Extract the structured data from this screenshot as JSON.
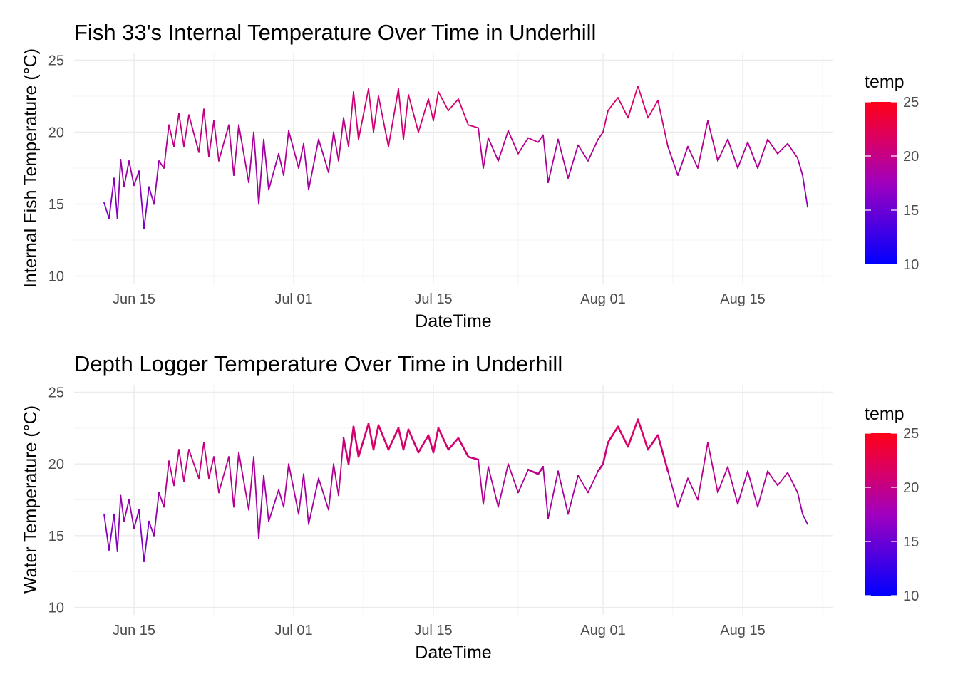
{
  "chart_data": [
    {
      "type": "line",
      "title": "Fish 33's Internal Temperature Over Time in Underhill",
      "xlabel": "DateTime",
      "ylabel": "Internal Fish Temperature (°C)",
      "ylim": [
        10,
        25
      ],
      "y_ticks": [
        "10",
        "15",
        "20",
        "25"
      ],
      "xlim": [
        "2024-06-09",
        "2024-08-24"
      ],
      "x_ticks": [
        {
          "date": "2024-06-15",
          "label": "Jun 15"
        },
        {
          "date": "2024-07-01",
          "label": "Jul 01"
        },
        {
          "date": "2024-07-15",
          "label": "Jul 15"
        },
        {
          "date": "2024-08-01",
          "label": "Aug 01"
        },
        {
          "date": "2024-08-15",
          "label": "Aug 15"
        }
      ],
      "grid": true,
      "legend": {
        "title": "temp",
        "position": "right",
        "type": "colorbar",
        "range": [
          10,
          25
        ],
        "breaks": [
          "10",
          "15",
          "20",
          "25"
        ],
        "low_color": "#0000ff",
        "high_color": "#ff0000"
      },
      "x": [
        "2024-06-12",
        "2024-06-12",
        "2024-06-13",
        "2024-06-13",
        "2024-06-13",
        "2024-06-14",
        "2024-06-14",
        "2024-06-15",
        "2024-06-15",
        "2024-06-16",
        "2024-06-16",
        "2024-06-17",
        "2024-06-17",
        "2024-06-18",
        "2024-06-18",
        "2024-06-19",
        "2024-06-19",
        "2024-06-20",
        "2024-06-20",
        "2024-06-21",
        "2024-06-22",
        "2024-06-22",
        "2024-06-23",
        "2024-06-23",
        "2024-06-24",
        "2024-06-25",
        "2024-06-25",
        "2024-06-26",
        "2024-06-27",
        "2024-06-27",
        "2024-06-28",
        "2024-06-28",
        "2024-06-29",
        "2024-06-30",
        "2024-06-30",
        "2024-07-01",
        "2024-07-02",
        "2024-07-02",
        "2024-07-03",
        "2024-07-04",
        "2024-07-05",
        "2024-07-05",
        "2024-07-06",
        "2024-07-06",
        "2024-07-07",
        "2024-07-07",
        "2024-07-08",
        "2024-07-09",
        "2024-07-09",
        "2024-07-10",
        "2024-07-11",
        "2024-07-12",
        "2024-07-12",
        "2024-07-13",
        "2024-07-14",
        "2024-07-15",
        "2024-07-15",
        "2024-07-16",
        "2024-07-17",
        "2024-07-18",
        "2024-07-19",
        "2024-07-20",
        "2024-07-20",
        "2024-07-21",
        "2024-07-22",
        "2024-07-23",
        "2024-07-24",
        "2024-07-25",
        "2024-07-26",
        "2024-07-26",
        "2024-07-27",
        "2024-07-28",
        "2024-07-29",
        "2024-07-30",
        "2024-07-31",
        "2024-08-01",
        "2024-08-01",
        "2024-08-02",
        "2024-08-03",
        "2024-08-04",
        "2024-08-05",
        "2024-08-06",
        "2024-08-07",
        "2024-08-08",
        "2024-08-09",
        "2024-08-10",
        "2024-08-11",
        "2024-08-12",
        "2024-08-13",
        "2024-08-14",
        "2024-08-15",
        "2024-08-16",
        "2024-08-17",
        "2024-08-18",
        "2024-08-19",
        "2024-08-20",
        "2024-08-21",
        "2024-08-21"
      ],
      "y": [
        15.1,
        14.0,
        16.8,
        14.0,
        18.1,
        16.2,
        18.0,
        16.3,
        17.3,
        13.3,
        16.2,
        15.0,
        18.0,
        17.5,
        20.5,
        19.0,
        21.3,
        19.0,
        21.2,
        18.6,
        21.6,
        18.3,
        20.8,
        18.0,
        20.5,
        17.0,
        20.5,
        16.5,
        20.0,
        15.0,
        19.5,
        16.0,
        18.5,
        17.0,
        20.1,
        17.5,
        19.2,
        16.0,
        19.5,
        17.2,
        20.0,
        18.0,
        21.0,
        19.0,
        22.8,
        19.5,
        23.0,
        20.0,
        22.5,
        19.0,
        23.0,
        19.5,
        22.6,
        20.0,
        22.3,
        20.8,
        22.8,
        21.5,
        22.3,
        20.5,
        20.3,
        17.5,
        19.6,
        18.0,
        20.1,
        18.5,
        19.6,
        19.3,
        19.8,
        16.5,
        19.5,
        16.8,
        19.1,
        18.0,
        19.5,
        20.0,
        21.5,
        22.4,
        21.0,
        23.2,
        21.0,
        22.2,
        19.0,
        17.0,
        19.0,
        17.5,
        20.8,
        18.0,
        19.5,
        17.5,
        19.3,
        17.5,
        19.5,
        18.5,
        19.2,
        18.2,
        17.0,
        14.8
      ]
    },
    {
      "type": "line",
      "title": "Depth Logger Temperature Over Time in Underhill",
      "xlabel": "DateTime",
      "ylabel": "Water Temperature (°C)",
      "ylim": [
        10,
        25
      ],
      "y_ticks": [
        "10",
        "15",
        "20",
        "25"
      ],
      "xlim": [
        "2024-06-09",
        "2024-08-24"
      ],
      "x_ticks": [
        {
          "date": "2024-06-15",
          "label": "Jun 15"
        },
        {
          "date": "2024-07-01",
          "label": "Jul 01"
        },
        {
          "date": "2024-07-15",
          "label": "Jul 15"
        },
        {
          "date": "2024-08-01",
          "label": "Aug 01"
        },
        {
          "date": "2024-08-15",
          "label": "Aug 15"
        }
      ],
      "grid": true,
      "legend": {
        "title": "temp",
        "position": "right",
        "type": "colorbar",
        "range": [
          10,
          25
        ],
        "breaks": [
          "10",
          "15",
          "20",
          "25"
        ],
        "low_color": "#0000ff",
        "high_color": "#ff0000"
      },
      "x": [
        "2024-06-12",
        "2024-06-12",
        "2024-06-13",
        "2024-06-13",
        "2024-06-13",
        "2024-06-14",
        "2024-06-14",
        "2024-06-15",
        "2024-06-15",
        "2024-06-16",
        "2024-06-16",
        "2024-06-17",
        "2024-06-17",
        "2024-06-18",
        "2024-06-18",
        "2024-06-19",
        "2024-06-19",
        "2024-06-20",
        "2024-06-20",
        "2024-06-21",
        "2024-06-22",
        "2024-06-22",
        "2024-06-23",
        "2024-06-23",
        "2024-06-24",
        "2024-06-25",
        "2024-06-25",
        "2024-06-26",
        "2024-06-27",
        "2024-06-27",
        "2024-06-28",
        "2024-06-28",
        "2024-06-29",
        "2024-06-30",
        "2024-06-30",
        "2024-07-01",
        "2024-07-02",
        "2024-07-02",
        "2024-07-03",
        "2024-07-04",
        "2024-07-05",
        "2024-07-05",
        "2024-07-06",
        "2024-07-06",
        "2024-07-07",
        "2024-07-07",
        "2024-07-08",
        "2024-07-09",
        "2024-07-09",
        "2024-07-10",
        "2024-07-11",
        "2024-07-12",
        "2024-07-12",
        "2024-07-13",
        "2024-07-14",
        "2024-07-15",
        "2024-07-15",
        "2024-07-16",
        "2024-07-17",
        "2024-07-18",
        "2024-07-19",
        "2024-07-20",
        "2024-07-20",
        "2024-07-21",
        "2024-07-22",
        "2024-07-23",
        "2024-07-24",
        "2024-07-25",
        "2024-07-26",
        "2024-07-26",
        "2024-07-27",
        "2024-07-28",
        "2024-07-29",
        "2024-07-30",
        "2024-07-31",
        "2024-08-01",
        "2024-08-01",
        "2024-08-02",
        "2024-08-03",
        "2024-08-04",
        "2024-08-05",
        "2024-08-06",
        "2024-08-07",
        "2024-08-08",
        "2024-08-09",
        "2024-08-10",
        "2024-08-11",
        "2024-08-12",
        "2024-08-13",
        "2024-08-14",
        "2024-08-15",
        "2024-08-16",
        "2024-08-17",
        "2024-08-18",
        "2024-08-19",
        "2024-08-20",
        "2024-08-21",
        "2024-08-21"
      ],
      "y": [
        16.5,
        14.0,
        16.5,
        13.9,
        17.8,
        16.0,
        17.5,
        15.5,
        16.8,
        13.2,
        16.0,
        15.0,
        18.0,
        17.0,
        20.2,
        18.5,
        21.0,
        18.8,
        21.0,
        19.0,
        21.5,
        19.0,
        20.5,
        18.0,
        20.5,
        17.0,
        20.8,
        16.8,
        20.5,
        14.8,
        19.2,
        16.0,
        18.2,
        17.0,
        20.0,
        16.5,
        19.3,
        15.8,
        19.0,
        16.8,
        20.0,
        17.8,
        21.8,
        20.0,
        22.6,
        20.5,
        22.8,
        21.0,
        22.7,
        21.0,
        22.5,
        21.0,
        22.4,
        20.8,
        22.0,
        20.8,
        22.5,
        21.0,
        21.8,
        20.5,
        20.3,
        17.2,
        19.8,
        17.0,
        20.0,
        18.0,
        19.6,
        19.3,
        19.8,
        16.2,
        19.5,
        16.5,
        19.2,
        18.0,
        19.5,
        20.0,
        21.5,
        22.6,
        21.2,
        23.1,
        21.0,
        22.0,
        19.5,
        17.0,
        19.0,
        17.5,
        21.5,
        18.0,
        19.8,
        17.2,
        19.5,
        17.0,
        19.5,
        18.5,
        19.4,
        18.0,
        16.5,
        15.8
      ]
    }
  ]
}
